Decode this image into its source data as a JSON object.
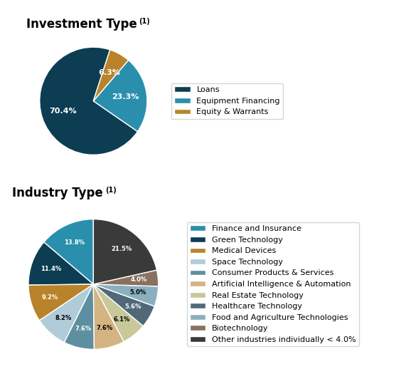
{
  "chart_data": [
    {
      "type": "pie",
      "title": "Investment Type",
      "annotations": [
        "(1)"
      ],
      "categories": [
        "Loans",
        "Equipment Financing",
        "Equity & Warrants"
      ],
      "values": [
        70.4,
        23.3,
        6.3
      ],
      "value_labels": [
        "70.4%",
        "23.3%",
        "6.3%"
      ],
      "colors": [
        "#0d3d52",
        "#2a8fad",
        "#b8832a"
      ],
      "data_labels": true,
      "legend": "center left"
    },
    {
      "type": "pie",
      "title": "Industry Type",
      "annotations": [
        "(1)"
      ],
      "categories": [
        "Finance and Insurance",
        "Green Technology",
        "Medical Devices",
        "Space Technology",
        "Consumer Products & Services",
        "Artificial Intelligence & Automation",
        "Real Estate Technology",
        "Healthcare Technology",
        "Food and Agriculture Technologies",
        "Biotechnology",
        "Other industries individually < 4.0%"
      ],
      "values": [
        13.8,
        11.4,
        9.2,
        8.2,
        7.6,
        7.6,
        6.1,
        5.6,
        5.0,
        4.0,
        21.5
      ],
      "value_labels": [
        "13.8%",
        "11.4%",
        "9.2%",
        "8.2%",
        "7.6%",
        "7.6%",
        "6.1%",
        "5.6%",
        "5.0%",
        "4.0%",
        "21.5%"
      ],
      "colors": [
        "#2a8fad",
        "#0d3d52",
        "#b8832a",
        "#b0ccd8",
        "#5e8fa0",
        "#d4b483",
        "#c8c89a",
        "#506878",
        "#8ab0c0",
        "#8a7060",
        "#3a3a3a"
      ],
      "data_labels": true,
      "legend": "center left"
    }
  ]
}
